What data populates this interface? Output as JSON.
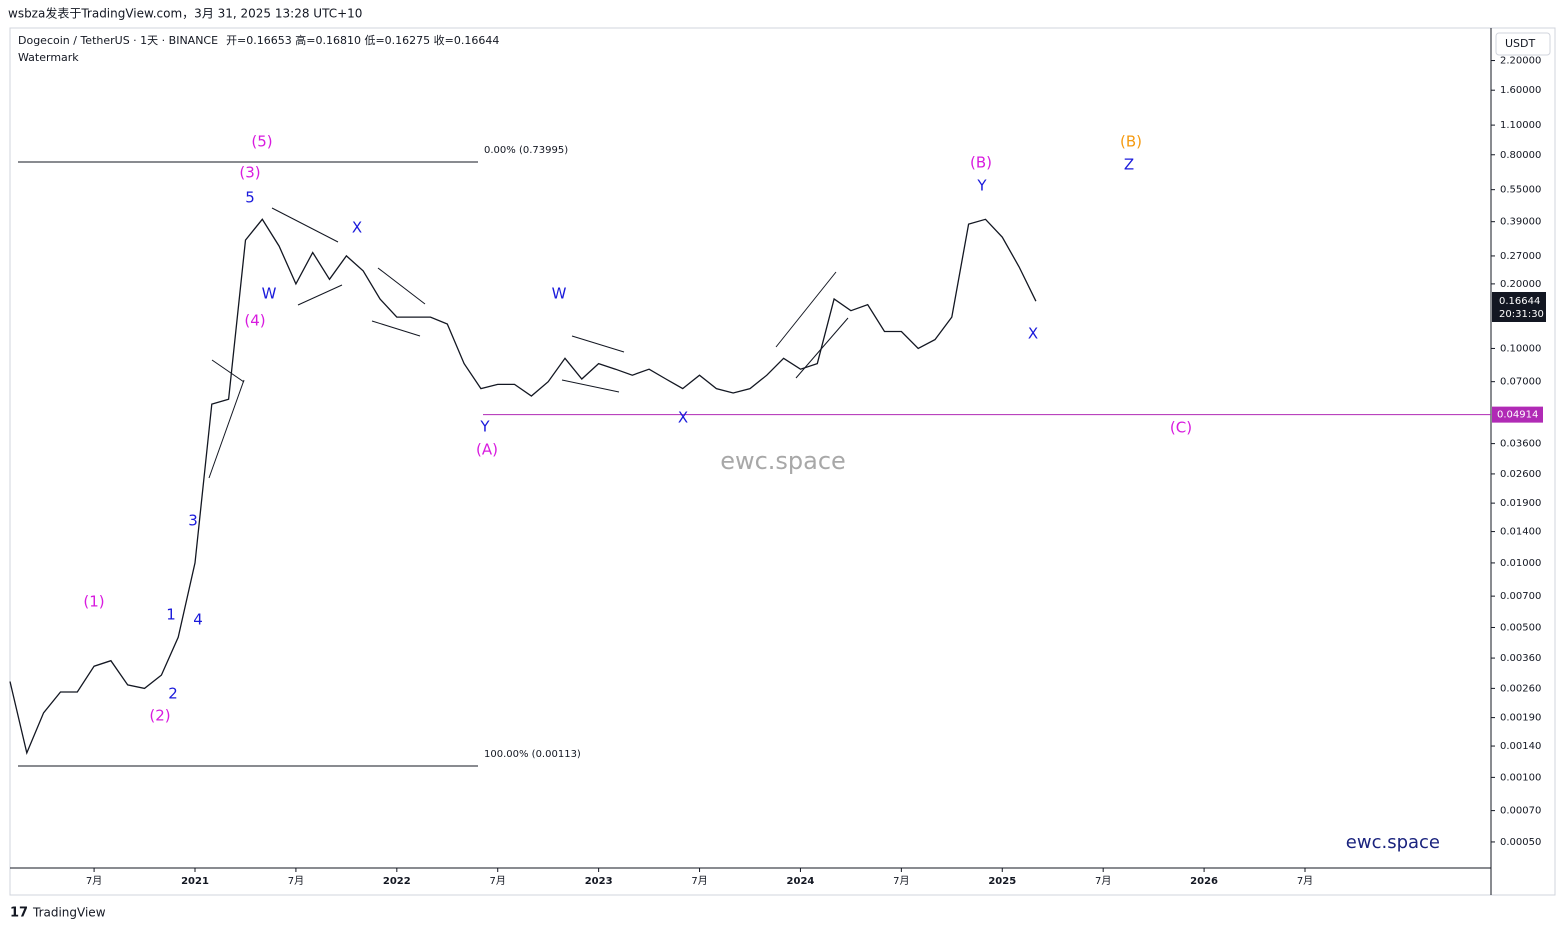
{
  "header": "wsbza发表于TradingView.com，3月 31, 2025 13:28 UTC+10",
  "footer": "TradingView",
  "chart_data": {
    "type": "line",
    "log_scale": true,
    "legend_extra": "开=0.16653 高=0.16810 低=0.16275 收=0.16644",
    "subtitle": "Watermark",
    "currency": "USDT",
    "watermark": "ewc.space",
    "brand": "ewc.space",
    "last_price": 0.16644,
    "countdown": "20:31:30",
    "level": {
      "value": 0.04914,
      "color": "#b02ab5"
    },
    "fib": [
      {
        "value": 0.73995,
        "label": "0.00% (0.73995)"
      },
      {
        "value": 0.00113,
        "label": "100.00% (0.00113)"
      }
    ],
    "x": [
      "2020-02",
      "2020-03",
      "2020-04",
      "2020-05",
      "2020-06",
      "2020-07",
      "2020-08",
      "2020-09",
      "2020-10",
      "2020-11",
      "2020-12",
      "2021-01",
      "2021-02",
      "2021-03",
      "2021-04",
      "2021-05",
      "2021-06",
      "2021-07",
      "2021-08",
      "2021-09",
      "2021-10",
      "2021-11",
      "2021-12",
      "2022-01",
      "2022-02",
      "2022-03",
      "2022-04",
      "2022-05",
      "2022-06",
      "2022-07",
      "2022-08",
      "2022-09",
      "2022-10",
      "2022-11",
      "2022-12",
      "2023-01",
      "2023-02",
      "2023-03",
      "2023-04",
      "2023-05",
      "2023-06",
      "2023-07",
      "2023-08",
      "2023-09",
      "2023-10",
      "2023-11",
      "2023-12",
      "2024-01",
      "2024-02",
      "2024-03",
      "2024-04",
      "2024-05",
      "2024-06",
      "2024-07",
      "2024-08",
      "2024-09",
      "2024-10",
      "2024-11",
      "2024-12",
      "2025-01",
      "2025-02",
      "2025-03"
    ],
    "series": [
      {
        "name": "Dogecoin / TetherUS · 1天 · BINANCE",
        "color": "#131722",
        "values": [
          0.0028,
          0.0013,
          0.002,
          0.0025,
          0.0025,
          0.0033,
          0.0035,
          0.0027,
          0.0026,
          0.003,
          0.0045,
          0.01,
          0.055,
          0.058,
          0.32,
          0.4,
          0.3,
          0.2,
          0.28,
          0.21,
          0.27,
          0.23,
          0.17,
          0.14,
          0.14,
          0.14,
          0.13,
          0.085,
          0.065,
          0.068,
          0.068,
          0.06,
          0.07,
          0.09,
          0.072,
          0.085,
          0.08,
          0.075,
          0.08,
          0.072,
          0.065,
          0.075,
          0.065,
          0.062,
          0.065,
          0.075,
          0.09,
          0.08,
          0.085,
          0.17,
          0.15,
          0.16,
          0.12,
          0.12,
          0.1,
          0.11,
          0.14,
          0.38,
          0.4,
          0.33,
          0.24,
          0.166
        ]
      }
    ],
    "xlim": [
      "2020-02",
      "2027-06"
    ],
    "ylim": [
      0.000378,
      3.12
    ],
    "xticks": [
      {
        "value": "2020-07",
        "label": "7月"
      },
      {
        "value": "2021-01",
        "label": "2021"
      },
      {
        "value": "2021-07",
        "label": "7月"
      },
      {
        "value": "2022-01",
        "label": "2022"
      },
      {
        "value": "2022-07",
        "label": "7月"
      },
      {
        "value": "2023-01",
        "label": "2023"
      },
      {
        "value": "2023-07",
        "label": "7月"
      },
      {
        "value": "2024-01",
        "label": "2024"
      },
      {
        "value": "2024-07",
        "label": "7月"
      },
      {
        "value": "2025-01",
        "label": "2025"
      },
      {
        "value": "2025-07",
        "label": "7月"
      },
      {
        "value": "2026-01",
        "label": "2026"
      },
      {
        "value": "2026-07",
        "label": "7月"
      }
    ],
    "yticks": [
      {
        "value": 2.2,
        "label": "2.20000"
      },
      {
        "value": 1.6,
        "label": "1.60000"
      },
      {
        "value": 1.1,
        "label": "1.10000"
      },
      {
        "value": 0.8,
        "label": "0.80000"
      },
      {
        "value": 0.55,
        "label": "0.55000"
      },
      {
        "value": 0.39,
        "label": "0.39000"
      },
      {
        "value": 0.27,
        "label": "0.27000"
      },
      {
        "value": 0.2,
        "label": "0.20000"
      },
      {
        "value": 0.1,
        "label": "0.10000"
      },
      {
        "value": 0.07,
        "label": "0.07000"
      },
      {
        "value": 0.036,
        "label": "0.03600"
      },
      {
        "value": 0.026,
        "label": "0.02600"
      },
      {
        "value": 0.019,
        "label": "0.01900"
      },
      {
        "value": 0.014,
        "label": "0.01400"
      },
      {
        "value": 0.01,
        "label": "0.01000"
      },
      {
        "value": 0.007,
        "label": "0.00700"
      },
      {
        "value": 0.005,
        "label": "0.00500"
      },
      {
        "value": 0.0036,
        "label": "0.00360"
      },
      {
        "value": 0.0026,
        "label": "0.00260"
      },
      {
        "value": 0.0019,
        "label": "0.00190"
      },
      {
        "value": 0.0014,
        "label": "0.00140"
      },
      {
        "value": 0.001,
        "label": "0.00100"
      },
      {
        "value": 0.0007,
        "label": "0.00070"
      },
      {
        "value": 0.0005,
        "label": "0.00050"
      }
    ],
    "annotations": [
      {
        "text": "(5)",
        "color": "#d81bdf"
      },
      {
        "text": "(3)",
        "color": "#d81bdf"
      },
      {
        "text": "5",
        "color": "#1a1adb"
      },
      {
        "text": "X",
        "color": "#1a1adb"
      },
      {
        "text": "W",
        "color": "#1a1adb"
      },
      {
        "text": "(4)",
        "color": "#d81bdf"
      },
      {
        "text": "3",
        "color": "#1a1adb"
      },
      {
        "text": "1",
        "color": "#1a1adb"
      },
      {
        "text": "4",
        "color": "#1a1adb"
      },
      {
        "text": "2",
        "color": "#1a1adb"
      },
      {
        "text": "(1)",
        "color": "#d81bdf"
      },
      {
        "text": "(2)",
        "color": "#d81bdf"
      },
      {
        "text": "W",
        "color": "#1a1adb"
      },
      {
        "text": "Y",
        "color": "#1a1adb"
      },
      {
        "text": "(A)",
        "color": "#d81bdf"
      },
      {
        "text": "X",
        "color": "#1a1adb"
      },
      {
        "text": "(B)",
        "color": "#d81bdf"
      },
      {
        "text": "Y",
        "color": "#1a1adb"
      },
      {
        "text": "X",
        "color": "#1a1adb"
      },
      {
        "text": "(B)",
        "color": "#f59a10"
      },
      {
        "text": "Z",
        "color": "#1a1adb"
      },
      {
        "text": "(C)",
        "color": "#d81bdf"
      }
    ]
  }
}
